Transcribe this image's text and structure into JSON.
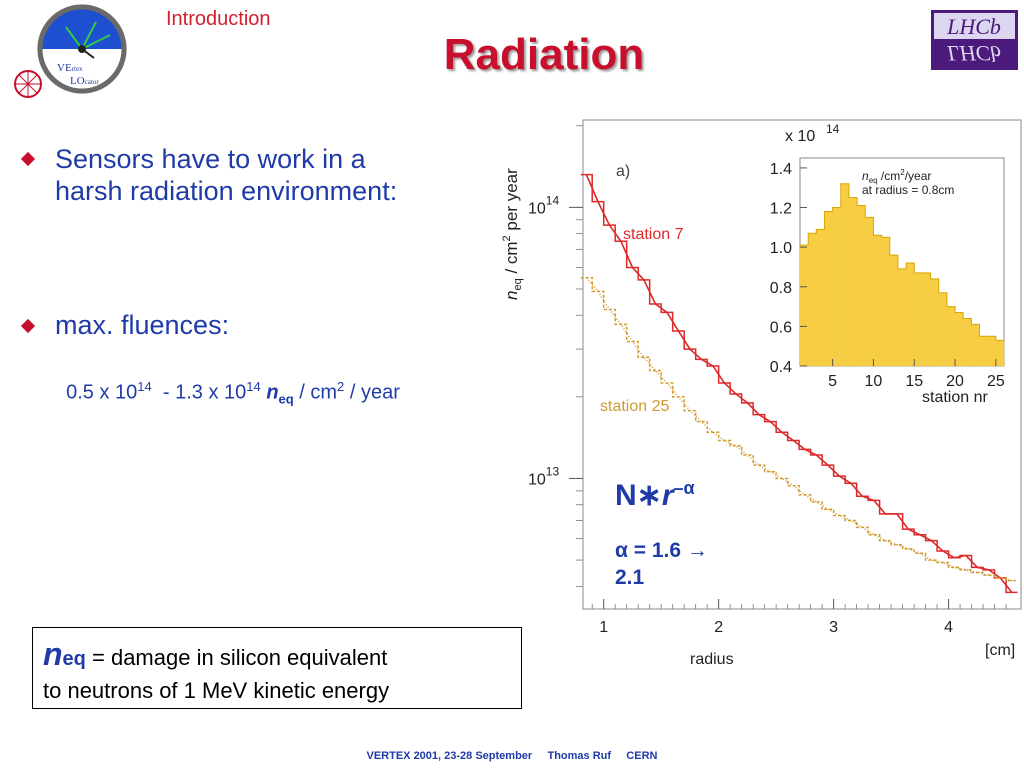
{
  "header": {
    "section": "Introduction",
    "title": "Radiation",
    "logo_left": {
      "line1": "VE",
      "line1_small": "rtex",
      "line2": "LO",
      "line2_small": "cator"
    },
    "logo_right": "LHCb"
  },
  "bullets": [
    {
      "lines": [
        "Sensors have to work in a",
        "harsh radiation environment:"
      ]
    },
    {
      "lines": [
        "max. fluences:"
      ]
    }
  ],
  "fluence": {
    "low_mantissa": "0.5 x 10",
    "low_exp": "14",
    "sep": "  - ",
    "high_mantissa": "1.3 x 10",
    "high_exp": "14",
    "n": "n",
    "n_sub": "eq",
    "unit_a": " / cm",
    "unit_exp": "2",
    "unit_b": " / year"
  },
  "definition": {
    "n": "n",
    "n_sub": "eq",
    "line1": " = damage in silicon equivalent",
    "line2": "to neutrons of 1 MeV kinetic energy"
  },
  "footer": "VERTEX 2001, 23-28 September     Thomas Ruf     CERN",
  "colors": {
    "accent": "#c8102e",
    "text_blue": "#1f3ba8",
    "station7": "#dc2a2a",
    "station25": "#d09a30",
    "hist_fill": "#f7cd44",
    "lhcb_bg": "#4b1a7a"
  },
  "chart_data": [
    {
      "type": "line",
      "panel": "a)",
      "xlabel": "radius",
      "xunit": "[cm]",
      "ylabel_parts": {
        "n": "n",
        "sub": "eq",
        "rest": " / cm",
        "exp": "2",
        "tail": " per year"
      },
      "xlim": [
        0.82,
        4.63
      ],
      "ylim": [
        3300000000000.0,
        210000000000000.0
      ],
      "yscale": "log",
      "xticks": [
        1,
        2,
        3,
        4
      ],
      "yticks": [
        {
          "value": 10000000000000.0,
          "base": "10",
          "exp": "13"
        },
        {
          "value": 100000000000000.0,
          "base": "10",
          "exp": "14"
        }
      ],
      "series": [
        {
          "name": "station 7",
          "color": "#dc2a2a",
          "style": "solid-histogram",
          "x": [
            0.85,
            0.95,
            1.05,
            1.15,
            1.25,
            1.35,
            1.45,
            1.55,
            1.65,
            1.75,
            1.85,
            1.95,
            2.05,
            2.15,
            2.25,
            2.35,
            2.45,
            2.55,
            2.65,
            2.75,
            2.85,
            2.95,
            3.05,
            3.15,
            3.25,
            3.35,
            3.45,
            3.55,
            3.65,
            3.75,
            3.85,
            3.95,
            4.05,
            4.15,
            4.25,
            4.35,
            4.45,
            4.55
          ],
          "y": [
            132000000000000.0,
            105000000000000.0,
            86000000000000.0,
            75000000000000.0,
            60000000000000.0,
            54000000000000.0,
            44000000000000.0,
            41000000000000.0,
            35000000000000.0,
            30000000000000.0,
            27500000000000.0,
            26000000000000.0,
            22500000000000.0,
            20500000000000.0,
            19000000000000.0,
            17200000000000.0,
            16200000000000.0,
            14800000000000.0,
            13800000000000.0,
            12800000000000.0,
            12200000000000.0,
            11200000000000.0,
            10200000000000.0,
            9600000000000.0,
            8600000000000.0,
            8300000000000.0,
            7400000000000.0,
            7400000000000.0,
            6500000000000.0,
            6200000000000.0,
            5900000000000.0,
            5400000000000.0,
            5100000000000.0,
            5200000000000.0,
            4700000000000.0,
            4600000000000.0,
            4300000000000.0,
            3800000000000.0
          ]
        },
        {
          "name": "station 25",
          "color": "#d09a30",
          "style": "dashed-histogram",
          "x": [
            0.85,
            0.95,
            1.05,
            1.15,
            1.25,
            1.35,
            1.45,
            1.55,
            1.65,
            1.75,
            1.85,
            1.95,
            2.05,
            2.15,
            2.25,
            2.35,
            2.45,
            2.55,
            2.65,
            2.75,
            2.85,
            2.95,
            3.05,
            3.15,
            3.25,
            3.35,
            3.45,
            3.55,
            3.65,
            3.75,
            3.85,
            3.95,
            4.05,
            4.15,
            4.25,
            4.35,
            4.45,
            4.55
          ],
          "y": [
            55000000000000.0,
            49000000000000.0,
            42000000000000.0,
            37000000000000.0,
            32000000000000.0,
            28000000000000.0,
            25000000000000.0,
            22500000000000.0,
            20000000000000.0,
            17800000000000.0,
            16200000000000.0,
            14800000000000.0,
            13800000000000.0,
            13200000000000.0,
            12200000000000.0,
            11200000000000.0,
            10600000000000.0,
            10000000000000.0,
            9400000000000.0,
            8700000000000.0,
            8200000000000.0,
            7700000000000.0,
            7300000000000.0,
            7000000000000.0,
            6600000000000.0,
            6200000000000.0,
            5900000000000.0,
            5700000000000.0,
            5500000000000.0,
            5300000000000.0,
            5000000000000.0,
            4900000000000.0,
            4700000000000.0,
            4600000000000.0,
            4500000000000.0,
            4400000000000.0,
            4300000000000.0,
            4200000000000.0
          ]
        }
      ],
      "fit": {
        "label_main": "N∗",
        "label_r": "r",
        "label_exp": "–α",
        "alpha_text": "α = 1.6 →",
        "alpha_text2": "2.1",
        "color": "#1f3ba8"
      }
    },
    {
      "type": "bar",
      "inset": true,
      "xlabel": "station nr",
      "scale_label": "x 10",
      "scale_exp": "14",
      "legend": {
        "n": "n",
        "sub": "eq",
        "rest": " /cm",
        "exp": "2",
        "tail": "/year",
        "line2": "at radius = 0.8cm"
      },
      "xlim": [
        1,
        26
      ],
      "ylim": [
        0.4,
        1.45
      ],
      "xticks": [
        5,
        10,
        15,
        20,
        25
      ],
      "yticks": [
        "0.4",
        "0.6",
        "0.8",
        "1.0",
        "1.2",
        "1.4"
      ],
      "ytick_values": [
        0.4,
        0.6,
        0.8,
        1.0,
        1.2,
        1.4
      ],
      "categories": [
        1,
        2,
        3,
        4,
        5,
        6,
        7,
        8,
        9,
        10,
        11,
        12,
        13,
        14,
        15,
        16,
        17,
        18,
        19,
        20,
        21,
        22,
        23,
        24,
        25
      ],
      "values": [
        1.01,
        1.07,
        1.09,
        1.18,
        1.2,
        1.32,
        1.25,
        1.21,
        1.15,
        1.06,
        1.05,
        0.96,
        0.89,
        0.92,
        0.87,
        0.87,
        0.84,
        0.77,
        0.7,
        0.67,
        0.64,
        0.61,
        0.55,
        0.55,
        0.53
      ],
      "color": "#f7cd44"
    }
  ]
}
